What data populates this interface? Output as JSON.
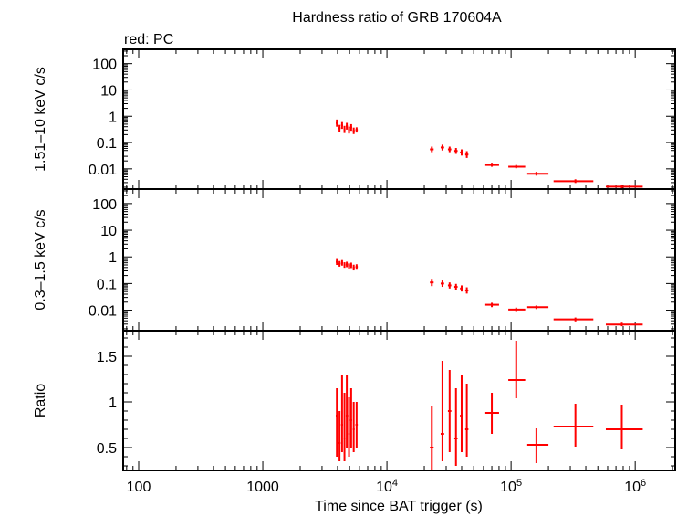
{
  "chart_data": {
    "type": "scatter",
    "title": "Hardness ratio of GRB 170604A",
    "legend": "red: PC",
    "xlabel": "Time since BAT trigger (s)",
    "x_scale": "log",
    "xlim": [
      75,
      2100000
    ],
    "x_ticks": [
      {
        "value": 100,
        "label": "100",
        "sup": ""
      },
      {
        "value": 1000,
        "label": "1000",
        "sup": ""
      },
      {
        "value": 10000,
        "label": "10",
        "sup": "4"
      },
      {
        "value": 100000,
        "label": "10",
        "sup": "5"
      },
      {
        "value": 1000000,
        "label": "10",
        "sup": "6"
      }
    ],
    "colors": {
      "series": "#ff0000",
      "axis": "#000000"
    },
    "panels": [
      {
        "id": "hard",
        "ylabel": "1.51–10 keV c/s",
        "y_scale": "log",
        "ylim": [
          0.0017,
          350
        ],
        "y_ticks": [
          {
            "value": 100,
            "label": "100"
          },
          {
            "value": 10,
            "label": "10"
          },
          {
            "value": 1,
            "label": "1"
          },
          {
            "value": 0.1,
            "label": "0.1"
          },
          {
            "value": 0.01,
            "label": "0.01"
          }
        ],
        "points": [
          {
            "x": 3950,
            "xerr": [
              80,
              80
            ],
            "y": 0.55,
            "yerr": [
              0.15,
              0.2
            ]
          },
          {
            "x": 4150,
            "xerr": [
              80,
              80
            ],
            "y": 0.35,
            "yerr": [
              0.1,
              0.12
            ]
          },
          {
            "x": 4350,
            "xerr": [
              80,
              80
            ],
            "y": 0.45,
            "yerr": [
              0.12,
              0.15
            ]
          },
          {
            "x": 4550,
            "xerr": [
              80,
              80
            ],
            "y": 0.32,
            "yerr": [
              0.09,
              0.11
            ]
          },
          {
            "x": 4750,
            "xerr": [
              90,
              90
            ],
            "y": 0.42,
            "yerr": [
              0.11,
              0.14
            ]
          },
          {
            "x": 4950,
            "xerr": [
              90,
              90
            ],
            "y": 0.3,
            "yerr": [
              0.08,
              0.1
            ]
          },
          {
            "x": 5150,
            "xerr": [
              90,
              90
            ],
            "y": 0.38,
            "yerr": [
              0.1,
              0.12
            ]
          },
          {
            "x": 5400,
            "xerr": [
              100,
              100
            ],
            "y": 0.28,
            "yerr": [
              0.07,
              0.09
            ]
          },
          {
            "x": 5700,
            "xerr": [
              120,
              120
            ],
            "y": 0.3,
            "yerr": [
              0.06,
              0.08
            ]
          },
          {
            "x": 23000,
            "xerr": [
              800,
              800
            ],
            "y": 0.055,
            "yerr": [
              0.012,
              0.015
            ]
          },
          {
            "x": 28000,
            "xerr": [
              900,
              900
            ],
            "y": 0.065,
            "yerr": [
              0.015,
              0.018
            ]
          },
          {
            "x": 32000,
            "xerr": [
              1000,
              1000
            ],
            "y": 0.055,
            "yerr": [
              0.012,
              0.015
            ]
          },
          {
            "x": 36000,
            "xerr": [
              1100,
              1100
            ],
            "y": 0.048,
            "yerr": [
              0.011,
              0.014
            ]
          },
          {
            "x": 40000,
            "xerr": [
              1200,
              1200
            ],
            "y": 0.042,
            "yerr": [
              0.01,
              0.013
            ]
          },
          {
            "x": 44000,
            "xerr": [
              1300,
              1300
            ],
            "y": 0.035,
            "yerr": [
              0.009,
              0.012
            ]
          },
          {
            "x": 70000,
            "xerr": [
              8000,
              10000
            ],
            "y": 0.014,
            "yerr": [
              0.002,
              0.003
            ]
          },
          {
            "x": 110000,
            "xerr": [
              15000,
              20000
            ],
            "y": 0.012,
            "yerr": [
              0.0015,
              0.002
            ]
          },
          {
            "x": 160000,
            "xerr": [
              25000,
              40000
            ],
            "y": 0.0065,
            "yerr": [
              0.001,
              0.0012
            ]
          },
          {
            "x": 330000,
            "xerr": [
              110000,
              130000
            ],
            "y": 0.0034,
            "yerr": [
              0.0005,
              0.0006
            ]
          },
          {
            "x": 780000,
            "xerr": [
              200000,
              370000
            ],
            "y": 0.0021,
            "yerr": [
              0.0003,
              0.0004
            ]
          }
        ]
      },
      {
        "id": "soft",
        "ylabel": "0.3–1.5 keV c/s",
        "y_scale": "log",
        "ylim": [
          0.0017,
          350
        ],
        "y_ticks": [
          {
            "value": 100,
            "label": "100"
          },
          {
            "value": 10,
            "label": "10"
          },
          {
            "value": 1,
            "label": "1"
          },
          {
            "value": 0.1,
            "label": "0.1"
          },
          {
            "value": 0.01,
            "label": "0.01"
          }
        ],
        "points": [
          {
            "x": 3950,
            "xerr": [
              80,
              80
            ],
            "y": 0.65,
            "yerr": [
              0.15,
              0.18
            ]
          },
          {
            "x": 4150,
            "xerr": [
              80,
              80
            ],
            "y": 0.55,
            "yerr": [
              0.12,
              0.15
            ]
          },
          {
            "x": 4350,
            "xerr": [
              80,
              80
            ],
            "y": 0.6,
            "yerr": [
              0.13,
              0.16
            ]
          },
          {
            "x": 4550,
            "xerr": [
              80,
              80
            ],
            "y": 0.5,
            "yerr": [
              0.11,
              0.13
            ]
          },
          {
            "x": 4750,
            "xerr": [
              90,
              90
            ],
            "y": 0.52,
            "yerr": [
              0.11,
              0.14
            ]
          },
          {
            "x": 4950,
            "xerr": [
              90,
              90
            ],
            "y": 0.45,
            "yerr": [
              0.1,
              0.12
            ]
          },
          {
            "x": 5150,
            "xerr": [
              90,
              90
            ],
            "y": 0.48,
            "yerr": [
              0.1,
              0.13
            ]
          },
          {
            "x": 5400,
            "xerr": [
              100,
              100
            ],
            "y": 0.4,
            "yerr": [
              0.09,
              0.11
            ]
          },
          {
            "x": 5700,
            "xerr": [
              120,
              120
            ],
            "y": 0.42,
            "yerr": [
              0.09,
              0.11
            ]
          },
          {
            "x": 23000,
            "xerr": [
              800,
              800
            ],
            "y": 0.11,
            "yerr": [
              0.03,
              0.04
            ]
          },
          {
            "x": 28000,
            "xerr": [
              900,
              900
            ],
            "y": 0.1,
            "yerr": [
              0.025,
              0.03
            ]
          },
          {
            "x": 32000,
            "xerr": [
              1000,
              1000
            ],
            "y": 0.085,
            "yerr": [
              0.02,
              0.025
            ]
          },
          {
            "x": 36000,
            "xerr": [
              1100,
              1100
            ],
            "y": 0.075,
            "yerr": [
              0.018,
              0.022
            ]
          },
          {
            "x": 40000,
            "xerr": [
              1200,
              1200
            ],
            "y": 0.065,
            "yerr": [
              0.015,
              0.02
            ]
          },
          {
            "x": 44000,
            "xerr": [
              1300,
              1300
            ],
            "y": 0.055,
            "yerr": [
              0.013,
              0.017
            ]
          },
          {
            "x": 70000,
            "xerr": [
              8000,
              10000
            ],
            "y": 0.016,
            "yerr": [
              0.003,
              0.003
            ]
          },
          {
            "x": 110000,
            "xerr": [
              15000,
              20000
            ],
            "y": 0.0105,
            "yerr": [
              0.002,
              0.002
            ]
          },
          {
            "x": 160000,
            "xerr": [
              25000,
              40000
            ],
            "y": 0.013,
            "yerr": [
              0.002,
              0.002
            ]
          },
          {
            "x": 330000,
            "xerr": [
              110000,
              130000
            ],
            "y": 0.0045,
            "yerr": [
              0.0007,
              0.0008
            ]
          },
          {
            "x": 780000,
            "xerr": [
              200000,
              370000
            ],
            "y": 0.0029,
            "yerr": [
              0.0004,
              0.0005
            ]
          }
        ]
      },
      {
        "id": "ratio",
        "ylabel": "Ratio",
        "y_scale": "linear",
        "ylim": [
          0.25,
          1.78
        ],
        "y_ticks": [
          {
            "value": 1.5,
            "label": "1.5"
          },
          {
            "value": 1,
            "label": "1"
          },
          {
            "value": 0.5,
            "label": "0.5"
          }
        ],
        "points": [
          {
            "x": 3950,
            "xerr": [
              80,
              80
            ],
            "y": 0.85,
            "yerr": [
              0.45,
              0.3
            ]
          },
          {
            "x": 4150,
            "xerr": [
              80,
              80
            ],
            "y": 0.55,
            "yerr": [
              0.2,
              0.35
            ]
          },
          {
            "x": 4350,
            "xerr": [
              80,
              80
            ],
            "y": 0.75,
            "yerr": [
              0.3,
              0.55
            ]
          },
          {
            "x": 4550,
            "xerr": [
              80,
              80
            ],
            "y": 0.6,
            "yerr": [
              0.25,
              0.5
            ]
          },
          {
            "x": 4750,
            "xerr": [
              90,
              90
            ],
            "y": 0.85,
            "yerr": [
              0.35,
              0.45
            ]
          },
          {
            "x": 4950,
            "xerr": [
              90,
              90
            ],
            "y": 0.65,
            "yerr": [
              0.25,
              0.4
            ]
          },
          {
            "x": 5150,
            "xerr": [
              90,
              90
            ],
            "y": 0.8,
            "yerr": [
              0.3,
              0.35
            ]
          },
          {
            "x": 5400,
            "xerr": [
              100,
              100
            ],
            "y": 0.7,
            "yerr": [
              0.25,
              0.3
            ]
          },
          {
            "x": 5700,
            "xerr": [
              120,
              120
            ],
            "y": 0.75,
            "yerr": [
              0.25,
              0.25
            ]
          },
          {
            "x": 23000,
            "xerr": [
              800,
              800
            ],
            "y": 0.5,
            "yerr": [
              0.25,
              0.45
            ]
          },
          {
            "x": 28000,
            "xerr": [
              900,
              900
            ],
            "y": 0.65,
            "yerr": [
              0.3,
              0.8
            ]
          },
          {
            "x": 32000,
            "xerr": [
              1000,
              1000
            ],
            "y": 0.9,
            "yerr": [
              0.45,
              0.45
            ]
          },
          {
            "x": 36000,
            "xerr": [
              1100,
              1100
            ],
            "y": 0.6,
            "yerr": [
              0.3,
              0.55
            ]
          },
          {
            "x": 40000,
            "xerr": [
              1200,
              1200
            ],
            "y": 0.85,
            "yerr": [
              0.4,
              0.45
            ]
          },
          {
            "x": 44000,
            "xerr": [
              1300,
              1300
            ],
            "y": 0.7,
            "yerr": [
              0.3,
              0.5
            ]
          },
          {
            "x": 70000,
            "xerr": [
              8000,
              10000
            ],
            "y": 0.88,
            "yerr": [
              0.23,
              0.22
            ]
          },
          {
            "x": 110000,
            "xerr": [
              15000,
              20000
            ],
            "y": 1.24,
            "yerr": [
              0.2,
              0.43
            ]
          },
          {
            "x": 160000,
            "xerr": [
              25000,
              40000
            ],
            "y": 0.53,
            "yerr": [
              0.2,
              0.18
            ]
          },
          {
            "x": 330000,
            "xerr": [
              110000,
              130000
            ],
            "y": 0.73,
            "yerr": [
              0.22,
              0.25
            ]
          },
          {
            "x": 780000,
            "xerr": [
              200000,
              370000
            ],
            "y": 0.7,
            "yerr": [
              0.22,
              0.27
            ]
          }
        ]
      }
    ]
  }
}
